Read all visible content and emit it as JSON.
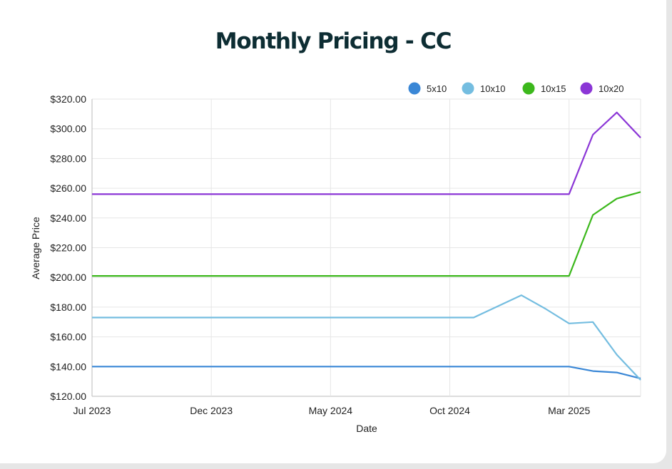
{
  "chart_data": {
    "type": "line",
    "title": "Monthly Pricing - CC",
    "xlabel": "Date",
    "ylabel": "Average Price",
    "ylim": [
      120,
      320
    ],
    "xlim": [
      "2023-07",
      "2025-06"
    ],
    "x_ticks": [
      "Jul 2023",
      "Dec 2023",
      "May 2024",
      "Oct 2024",
      "Mar 2025"
    ],
    "x_tick_dates": [
      "2023-07",
      "2023-12",
      "2024-05",
      "2024-10",
      "2025-03"
    ],
    "y_ticks": [
      "$120.00",
      "$140.00",
      "$160.00",
      "$180.00",
      "$200.00",
      "$220.00",
      "$240.00",
      "$260.00",
      "$280.00",
      "$300.00",
      "$320.00"
    ],
    "grid": true,
    "legend_position": "top-right",
    "series": [
      {
        "name": "5x10",
        "color": "#3a87d6",
        "points": [
          [
            "2023-07",
            140
          ],
          [
            "2025-03",
            140
          ],
          [
            "2025-04",
            137
          ],
          [
            "2025-05",
            136
          ],
          [
            "2025-06",
            132
          ]
        ]
      },
      {
        "name": "10x10",
        "color": "#74bde0",
        "points": [
          [
            "2023-07",
            173
          ],
          [
            "2024-11",
            173
          ],
          [
            "2025-01",
            188
          ],
          [
            "2025-02",
            179
          ],
          [
            "2025-03",
            169
          ],
          [
            "2025-04",
            170
          ],
          [
            "2025-05",
            148
          ],
          [
            "2025-06",
            131
          ]
        ]
      },
      {
        "name": "10x15",
        "color": "#3cb81c",
        "points": [
          [
            "2023-07",
            201
          ],
          [
            "2025-03",
            201
          ],
          [
            "2025-04",
            242
          ],
          [
            "2025-05",
            253
          ],
          [
            "2025-06",
            257.5
          ]
        ]
      },
      {
        "name": "10x20",
        "color": "#8b36d6",
        "points": [
          [
            "2023-07",
            256
          ],
          [
            "2025-03",
            256
          ],
          [
            "2025-04",
            296
          ],
          [
            "2025-05",
            311
          ],
          [
            "2025-06",
            294
          ]
        ]
      }
    ]
  }
}
